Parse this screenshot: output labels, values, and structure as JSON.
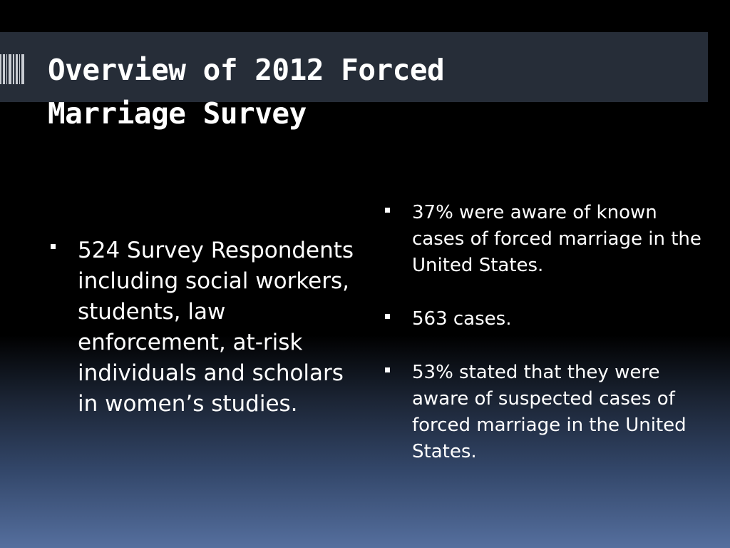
{
  "slide": {
    "title_line1": "Overview of 2012 Forced",
    "title_line2": "Marriage Survey"
  },
  "left_column": {
    "bullets": [
      "524 Survey Respondents including social workers, students, law enforcement, at-risk individuals and scholars in women’s studies."
    ]
  },
  "right_column": {
    "bullets": [
      "37% were aware of known cases of forced marriage in the United States.",
      "563 cases.",
      "53% stated that they were aware of suspected cases of forced marriage in the United States."
    ]
  },
  "colors": {
    "background_top": "#000000",
    "background_bottom": "#556f9e",
    "title_band": "#262d38",
    "text": "#ffffff"
  }
}
